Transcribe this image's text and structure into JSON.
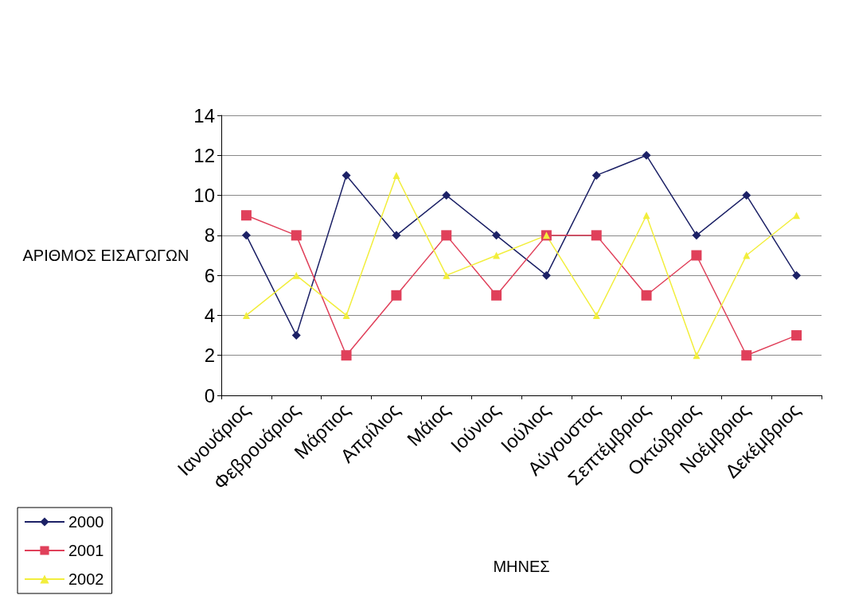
{
  "chart_data": {
    "type": "line",
    "xlabel": "ΜΗΝΕΣ",
    "ylabel": "ΑΡΙΘΜΟΣ ΕΙΣΑΓΩΓΩΝ",
    "categories": [
      "Ιανουάριος",
      "Φεβρουάριος",
      "Μάρτιος",
      "Απρίλιος",
      "Μάιος",
      "Ιούνιος",
      "Ιούλιος",
      "Αύγουστος",
      "Σεπτέμβριος",
      "Οκτώβριος",
      "Νοέμβριος",
      "Δεκέμβριος"
    ],
    "series": [
      {
        "name": "2000",
        "color": "#1c2166",
        "marker": "diamond",
        "values": [
          8,
          3,
          11,
          8,
          10,
          8,
          6,
          11,
          12,
          8,
          10,
          6
        ]
      },
      {
        "name": "2001",
        "color": "#e0405a",
        "marker": "square",
        "values": [
          9,
          8,
          2,
          5,
          8,
          5,
          8,
          8,
          5,
          7,
          2,
          3
        ]
      },
      {
        "name": "2002",
        "color": "#f2ee3c",
        "marker": "triangle",
        "values": [
          4,
          6,
          4,
          11,
          6,
          7,
          8,
          4,
          9,
          2,
          7,
          9
        ]
      }
    ],
    "ylim": [
      0,
      14
    ],
    "yticks": [
      0,
      2,
      4,
      6,
      8,
      10,
      12,
      14
    ],
    "grid": "y",
    "legend": "bottom left",
    "line_style": "solid"
  }
}
